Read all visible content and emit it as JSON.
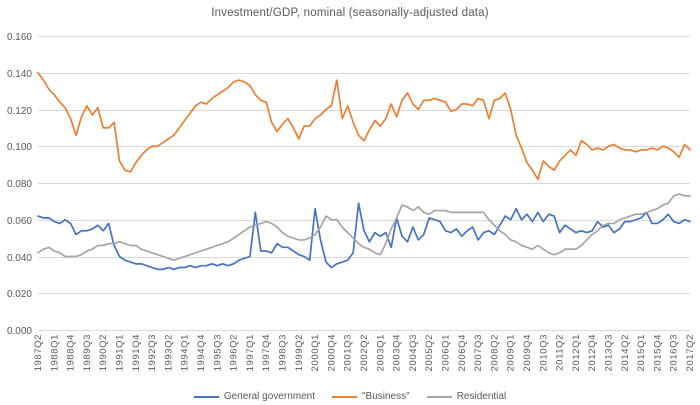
{
  "title": "Investment/GDP, nominal (seasonally-adjusted data)",
  "colors": {
    "grid": "#d9d9d9",
    "text": "#595959",
    "background": "#ffffff"
  },
  "chart_data": {
    "type": "line",
    "title": "Investment/GDP, nominal (seasonally-adjusted data)",
    "xlabel": "",
    "ylabel": "",
    "grid": true,
    "legend_position": "bottom",
    "ylim": [
      0,
      0.16
    ],
    "y_tick_step": 0.02,
    "y_tick_decimals": 3,
    "x_tick_step": 3,
    "categories": [
      "1987Q2",
      "1987Q3",
      "1987Q4",
      "1988Q1",
      "1988Q2",
      "1988Q3",
      "1988Q4",
      "1989Q1",
      "1989Q2",
      "1989Q3",
      "1989Q4",
      "1990Q1",
      "1990Q2",
      "1990Q3",
      "1990Q4",
      "1991Q1",
      "1991Q2",
      "1991Q3",
      "1991Q4",
      "1992Q1",
      "1992Q2",
      "1992Q3",
      "1992Q4",
      "1993Q1",
      "1993Q2",
      "1993Q3",
      "1993Q4",
      "1994Q1",
      "1994Q2",
      "1994Q3",
      "1994Q4",
      "1995Q1",
      "1995Q2",
      "1995Q3",
      "1995Q4",
      "1996Q1",
      "1996Q2",
      "1996Q3",
      "1996Q4",
      "1997Q1",
      "1997Q2",
      "1997Q3",
      "1997Q4",
      "1998Q1",
      "1998Q2",
      "1998Q3",
      "1998Q4",
      "1999Q1",
      "1999Q2",
      "1999Q3",
      "1999Q4",
      "2000Q1",
      "2000Q2",
      "2000Q3",
      "2000Q4",
      "2001Q1",
      "2001Q2",
      "2001Q3",
      "2001Q4",
      "2002Q1",
      "2002Q2",
      "2002Q3",
      "2002Q4",
      "2003Q1",
      "2003Q2",
      "2003Q3",
      "2003Q4",
      "2004Q1",
      "2004Q2",
      "2004Q3",
      "2004Q4",
      "2005Q1",
      "2005Q2",
      "2005Q3",
      "2005Q4",
      "2006Q1",
      "2006Q2",
      "2006Q3",
      "2006Q4",
      "2007Q1",
      "2007Q2",
      "2007Q3",
      "2007Q4",
      "2008Q1",
      "2008Q2",
      "2008Q3",
      "2008Q4",
      "2009Q1",
      "2009Q2",
      "2009Q3",
      "2009Q4",
      "2010Q1",
      "2010Q2",
      "2010Q3",
      "2010Q4",
      "2011Q1",
      "2011Q2",
      "2011Q3",
      "2011Q4",
      "2012Q1",
      "2012Q2",
      "2012Q3",
      "2012Q4",
      "2013Q1",
      "2013Q2",
      "2013Q3",
      "2013Q4",
      "2014Q1",
      "2014Q2",
      "2014Q3",
      "2014Q4",
      "2015Q1",
      "2015Q2",
      "2015Q3",
      "2015Q4",
      "2016Q1",
      "2016Q2",
      "2016Q3",
      "2016Q4",
      "2017Q1",
      "2017Q2"
    ],
    "series": [
      {
        "name": "General government",
        "color": "#4472C4",
        "values": [
          0.062,
          0.061,
          0.061,
          0.059,
          0.058,
          0.06,
          0.058,
          0.052,
          0.054,
          0.054,
          0.055,
          0.057,
          0.054,
          0.058,
          0.046,
          0.04,
          0.038,
          0.037,
          0.036,
          0.036,
          0.035,
          0.034,
          0.033,
          0.033,
          0.034,
          0.033,
          0.034,
          0.034,
          0.035,
          0.034,
          0.035,
          0.035,
          0.036,
          0.035,
          0.036,
          0.035,
          0.036,
          0.038,
          0.039,
          0.04,
          0.064,
          0.043,
          0.043,
          0.042,
          0.047,
          0.045,
          0.045,
          0.043,
          0.041,
          0.04,
          0.038,
          0.066,
          0.049,
          0.037,
          0.034,
          0.036,
          0.037,
          0.038,
          0.042,
          0.069,
          0.054,
          0.048,
          0.053,
          0.051,
          0.053,
          0.045,
          0.061,
          0.051,
          0.048,
          0.056,
          0.049,
          0.052,
          0.061,
          0.06,
          0.059,
          0.054,
          0.053,
          0.055,
          0.051,
          0.054,
          0.056,
          0.049,
          0.053,
          0.054,
          0.052,
          0.057,
          0.062,
          0.06,
          0.066,
          0.06,
          0.063,
          0.059,
          0.064,
          0.059,
          0.063,
          0.062,
          0.053,
          0.057,
          0.055,
          0.053,
          0.054,
          0.053,
          0.054,
          0.059,
          0.056,
          0.057,
          0.053,
          0.055,
          0.059,
          0.059,
          0.06,
          0.061,
          0.064,
          0.058,
          0.058,
          0.06,
          0.063,
          0.059,
          0.058,
          0.06,
          0.059
        ]
      },
      {
        "name": "\"Business\"",
        "color": "#ED7D31",
        "values": [
          0.14,
          0.136,
          0.131,
          0.128,
          0.124,
          0.121,
          0.115,
          0.106,
          0.116,
          0.122,
          0.117,
          0.121,
          0.11,
          0.11,
          0.113,
          0.092,
          0.087,
          0.086,
          0.091,
          0.095,
          0.098,
          0.1,
          0.1,
          0.102,
          0.104,
          0.106,
          0.11,
          0.114,
          0.118,
          0.122,
          0.124,
          0.123,
          0.126,
          0.128,
          0.13,
          0.132,
          0.135,
          0.136,
          0.135,
          0.133,
          0.128,
          0.125,
          0.124,
          0.113,
          0.108,
          0.112,
          0.115,
          0.11,
          0.104,
          0.111,
          0.111,
          0.115,
          0.117,
          0.12,
          0.122,
          0.136,
          0.115,
          0.122,
          0.113,
          0.106,
          0.103,
          0.109,
          0.114,
          0.111,
          0.115,
          0.123,
          0.116,
          0.125,
          0.129,
          0.123,
          0.12,
          0.125,
          0.125,
          0.126,
          0.125,
          0.124,
          0.119,
          0.12,
          0.123,
          0.123,
          0.122,
          0.126,
          0.125,
          0.115,
          0.125,
          0.126,
          0.129,
          0.12,
          0.106,
          0.099,
          0.091,
          0.087,
          0.082,
          0.092,
          0.089,
          0.087,
          0.092,
          0.095,
          0.098,
          0.095,
          0.103,
          0.101,
          0.098,
          0.099,
          0.098,
          0.1,
          0.101,
          0.099,
          0.098,
          0.098,
          0.097,
          0.098,
          0.098,
          0.099,
          0.098,
          0.1,
          0.099,
          0.097,
          0.094,
          0.101,
          0.098
        ]
      },
      {
        "name": "Residential",
        "color": "#A5A5A5",
        "values": [
          0.042,
          0.044,
          0.045,
          0.043,
          0.042,
          0.04,
          0.04,
          0.04,
          0.041,
          0.043,
          0.044,
          0.046,
          0.046,
          0.047,
          0.047,
          0.048,
          0.047,
          0.046,
          0.046,
          0.044,
          0.043,
          0.042,
          0.041,
          0.04,
          0.039,
          0.038,
          0.039,
          0.04,
          0.041,
          0.042,
          0.043,
          0.044,
          0.045,
          0.046,
          0.047,
          0.048,
          0.05,
          0.052,
          0.054,
          0.056,
          0.057,
          0.058,
          0.059,
          0.058,
          0.056,
          0.053,
          0.051,
          0.05,
          0.049,
          0.049,
          0.05,
          0.052,
          0.056,
          0.062,
          0.06,
          0.06,
          0.056,
          0.053,
          0.05,
          0.047,
          0.045,
          0.044,
          0.042,
          0.041,
          0.047,
          0.055,
          0.061,
          0.068,
          0.067,
          0.065,
          0.067,
          0.064,
          0.063,
          0.065,
          0.065,
          0.065,
          0.064,
          0.064,
          0.064,
          0.064,
          0.064,
          0.064,
          0.064,
          0.06,
          0.057,
          0.054,
          0.052,
          0.049,
          0.048,
          0.046,
          0.045,
          0.044,
          0.046,
          0.044,
          0.042,
          0.041,
          0.042,
          0.044,
          0.044,
          0.044,
          0.046,
          0.049,
          0.052,
          0.054,
          0.057,
          0.058,
          0.058,
          0.06,
          0.061,
          0.062,
          0.063,
          0.063,
          0.064,
          0.065,
          0.066,
          0.068,
          0.069,
          0.073,
          0.074,
          0.073,
          0.073
        ]
      }
    ]
  }
}
